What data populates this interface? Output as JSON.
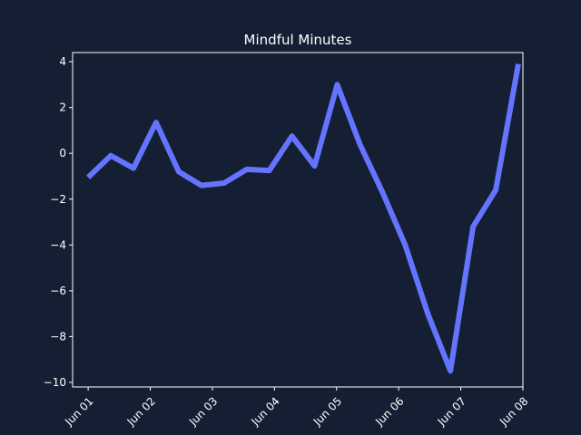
{
  "chart_data": {
    "type": "line",
    "title": "Mindful Minutes",
    "xlabel": "",
    "ylabel": "",
    "x": [
      "2024-06-01T00:00",
      "2024-06-01T08:45",
      "2024-06-01T17:30",
      "2024-06-02T02:15",
      "2024-06-02T11:00",
      "2024-06-02T19:45",
      "2024-06-03T04:30",
      "2024-06-03T13:15",
      "2024-06-03T22:00",
      "2024-06-04T06:45",
      "2024-06-04T15:30",
      "2024-06-05T00:15",
      "2024-06-05T09:00",
      "2024-06-05T17:45",
      "2024-06-06T02:30",
      "2024-06-06T11:15",
      "2024-06-06T20:00",
      "2024-06-07T04:45",
      "2024-06-07T13:30",
      "2024-06-07T22:15"
    ],
    "series": [
      {
        "values": [
          -1.05,
          -0.1,
          -0.65,
          1.35,
          -0.8,
          -1.4,
          -1.3,
          -0.7,
          -0.75,
          0.75,
          -0.55,
          3.0,
          0.4,
          -1.7,
          -4.0,
          -7.0,
          -9.5,
          -3.2,
          -1.6,
          3.9
        ]
      }
    ],
    "xticks": [
      "Jun 01",
      "Jun 02",
      "Jun 03",
      "Jun 04",
      "Jun 05",
      "Jun 06",
      "Jun 07",
      "Jun 08"
    ],
    "yticks": [
      "−10",
      "−8",
      "−6",
      "−4",
      "−2",
      "0",
      "2",
      "4"
    ],
    "ylim": [
      -10.2,
      4.4
    ],
    "xlim": [
      "2024-05-31T18:00",
      "2024-06-08T00:00"
    ],
    "grid": false,
    "colors": {
      "background": "#141f33",
      "line": "#6574ff",
      "axis": "#ffffff"
    }
  }
}
